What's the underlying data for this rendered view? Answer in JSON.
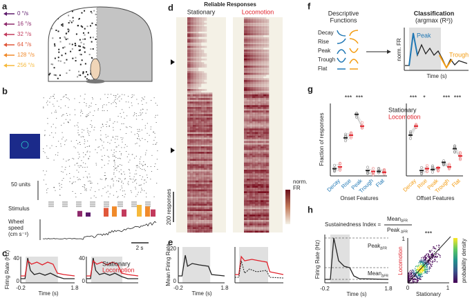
{
  "panels": [
    "a",
    "b",
    "c",
    "d",
    "e",
    "f",
    "g",
    "h"
  ],
  "a": {
    "speeds": [
      {
        "label": "0 °/s",
        "color": "#5c1a6b"
      },
      {
        "label": "16 °/s",
        "color": "#8e2a6c"
      },
      {
        "label": "32 °/s",
        "color": "#c23a5c"
      },
      {
        "label": "64 °/s",
        "color": "#e0573a"
      },
      {
        "label": "128 °/s",
        "color": "#f08a2b"
      },
      {
        "label": "256 °/s",
        "color": "#f6b93b"
      }
    ]
  },
  "b": {
    "scale_units": "50 units",
    "stimulus": "Stimulus",
    "wheel": [
      "Wheel",
      "speed",
      "(cm s⁻¹)"
    ],
    "time_scale": "2 s"
  },
  "c": {
    "ylabel": "Firing Rate (Hz)",
    "left_yticks": [
      40,
      0
    ],
    "right_yticks": [
      40,
      0
    ],
    "xticks": [
      -0.2,
      1.8
    ],
    "xlabel": "Time (s)",
    "legend": [
      {
        "name": "Stationary",
        "color": "#222222"
      },
      {
        "name": "Locomotion",
        "color": "#e0202a"
      }
    ]
  },
  "d": {
    "title": "Reliable Responses",
    "columns": [
      {
        "name": "Stationary",
        "color": "#222222"
      },
      {
        "name": "Locomotion",
        "color": "#e0202a"
      }
    ],
    "colorbar": [
      "norm.",
      "FR"
    ],
    "scale": "200 responses"
  },
  "e": {
    "ylabel": "Mean Firing Rate",
    "yticks": [
      20,
      0
    ],
    "xticks": [
      -0.2,
      1.8
    ],
    "xlabel": "Time (s)"
  },
  "f": {
    "left_title": [
      "Descriptive",
      "Functions"
    ],
    "functions": [
      "Decay",
      "Rise",
      "Peak",
      "Trough",
      "Flat"
    ],
    "right_title": [
      "Classification",
      "(argmax (R²))"
    ],
    "ylabel": "norm. FR",
    "xlabel": "Time (s)",
    "peak": "Peak",
    "trough": "Trough"
  },
  "g": {
    "ylabel": "Fraction of responses",
    "ylim": [
      0,
      0.8
    ],
    "legend": [
      {
        "name": "Stationary",
        "color": "#222222"
      },
      {
        "name": "Locomotion",
        "color": "#e0202a"
      }
    ],
    "groups": [
      {
        "title": "Onset Features",
        "color": "#1f77b4",
        "categories": [
          "Decay",
          "Rise",
          "Peak",
          "Trough",
          "Flat"
        ],
        "stars": [
          null,
          "***",
          "***",
          null,
          null
        ],
        "stationary": [
          0.08,
          0.42,
          0.68,
          0.06,
          0.05
        ],
        "locomotion": [
          0.1,
          0.45,
          0.55,
          0.05,
          0.04
        ]
      },
      {
        "title": "Offset Features",
        "color": "#f39c12",
        "categories": [
          "Decay",
          "Rise",
          "Peak",
          "Trough",
          "Flat"
        ],
        "stars": [
          "***",
          "*",
          null,
          "***",
          "***"
        ],
        "stationary": [
          0.45,
          0.06,
          0.07,
          0.15,
          0.3
        ],
        "locomotion": [
          0.55,
          0.08,
          0.09,
          0.1,
          0.22
        ]
      }
    ]
  },
  "h": {
    "formula": "Sustainedness Index =",
    "num": {
      "main": "Mean",
      "sub": "ΔFR"
    },
    "den": {
      "main": "Peak",
      "sub": "ΔFR"
    },
    "ylabel": "Firing Rate (Hz)",
    "xticks": [
      -0.2,
      1.8
    ],
    "xlabel": "Time (s)",
    "scatter_stars": "***",
    "scatter_ylabel": "Locomotion",
    "scatter_xlabel": "Stationary",
    "scatter_xticks": [
      0,
      1
    ],
    "scatter_yticks": [
      1
    ],
    "colorbar": "probability density"
  }
}
